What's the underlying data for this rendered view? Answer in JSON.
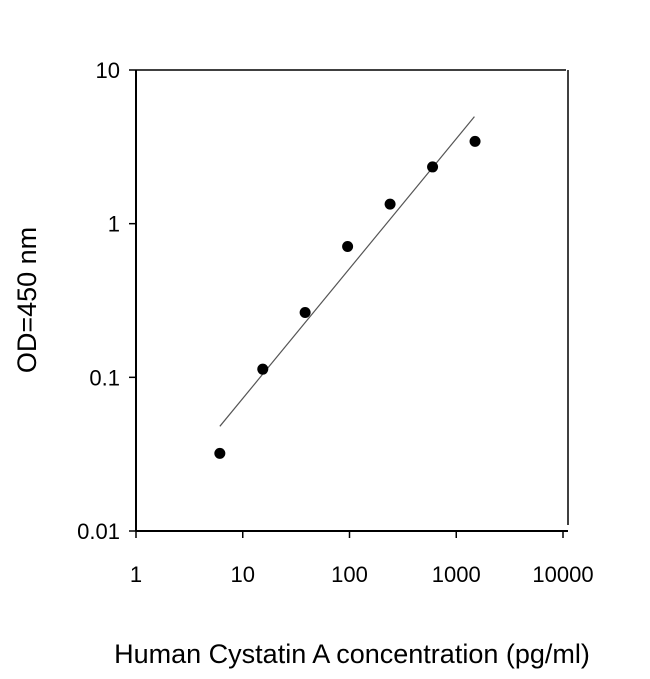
{
  "chart_data": {
    "type": "scatter",
    "title": "",
    "xlabel": "Human Cystatin A concentration (pg/ml)",
    "ylabel": "OD=450 nm",
    "xscale": "log",
    "yscale": "log",
    "xlim": [
      1,
      10000
    ],
    "ylim": [
      0.01,
      10
    ],
    "xticks": [
      1,
      10,
      100,
      1000,
      10000
    ],
    "xtick_labels": [
      "1",
      "10",
      "100",
      "1000",
      "10000"
    ],
    "yticks": [
      0.01,
      0.1,
      1,
      10
    ],
    "ytick_labels": [
      "0.01",
      "0.1",
      "1",
      "10"
    ],
    "grid": false,
    "series": [
      {
        "x": [
          6.1,
          15.4,
          38.4,
          96,
          240,
          600,
          1500
        ],
        "y": [
          0.032,
          0.113,
          0.264,
          0.71,
          1.34,
          2.34,
          3.43
        ],
        "marker": "circle",
        "color": "#000000"
      }
    ],
    "fit_line": {
      "x": [
        6.1,
        1480
      ],
      "y": [
        0.048,
        4.97
      ],
      "color": "#555555"
    }
  }
}
